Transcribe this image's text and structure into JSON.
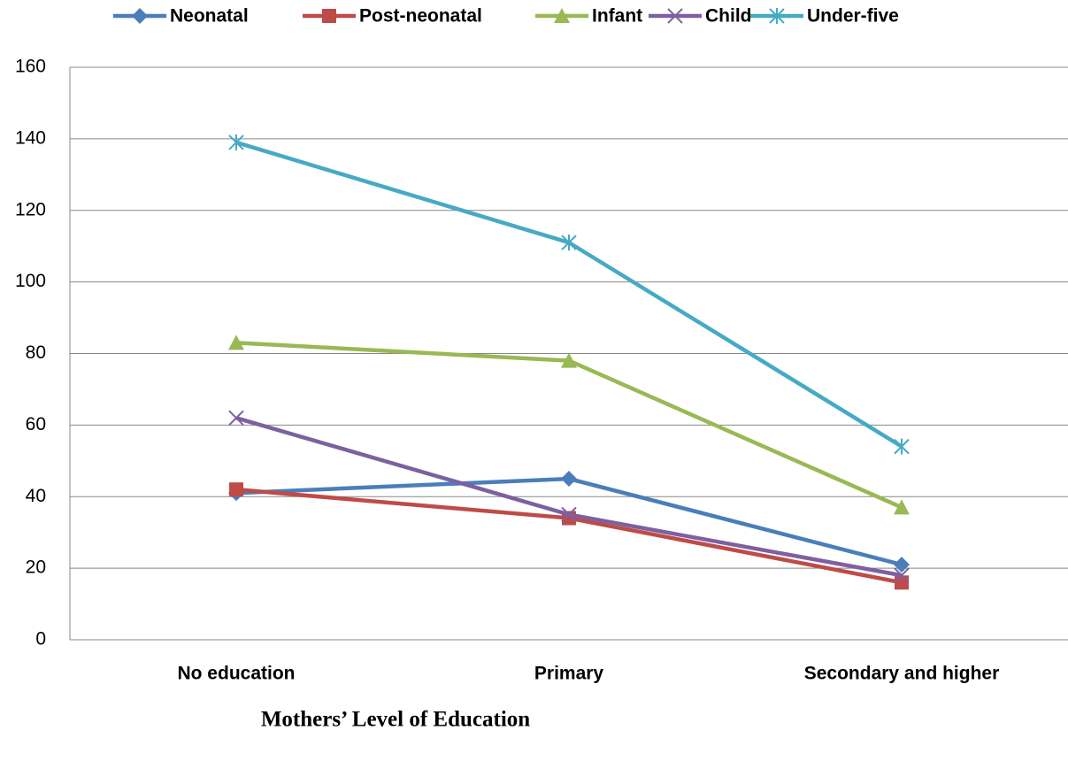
{
  "chart_data": {
    "type": "line",
    "x_label": "Mothers’ Level of Education",
    "categories": [
      "No education",
      "Primary",
      "Secondary and higher"
    ],
    "series": [
      {
        "name": "Neonatal",
        "color": "#4a7ebb",
        "marker": "diamond",
        "values": [
          41,
          45,
          21
        ]
      },
      {
        "name": "Post-neonatal",
        "color": "#be4b48",
        "marker": "square",
        "values": [
          42,
          34,
          16
        ]
      },
      {
        "name": "Infant",
        "color": "#98b954",
        "marker": "triangle",
        "values": [
          83,
          78,
          37
        ]
      },
      {
        "name": "Child",
        "color": "#7d60a0",
        "marker": "x",
        "values": [
          62,
          35,
          18
        ]
      },
      {
        "name": "Under-five",
        "color": "#46aac5",
        "marker": "star",
        "values": [
          139,
          111,
          54
        ]
      }
    ],
    "ylim": [
      0,
      160
    ],
    "yticks": [
      0,
      20,
      40,
      60,
      80,
      100,
      120,
      140,
      160
    ],
    "grid": true,
    "legend": "top"
  }
}
